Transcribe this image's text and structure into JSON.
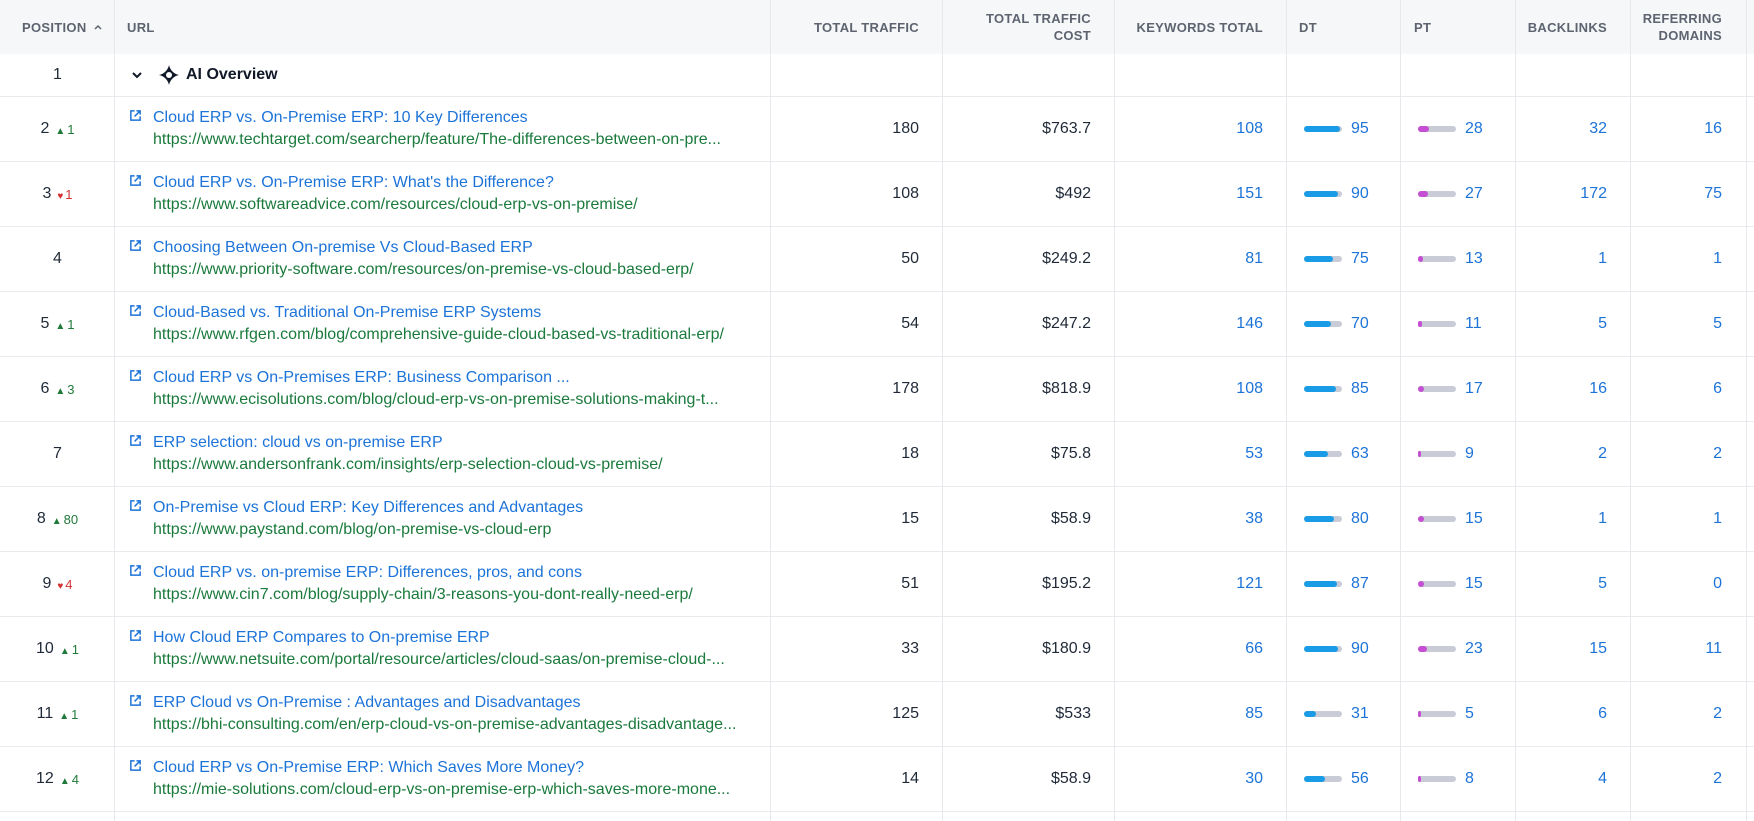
{
  "headers": {
    "position": "POSITION",
    "url": "URL",
    "traffic": "TOTAL TRAFFIC",
    "cost_line1": "TOTAL TRAFFIC",
    "cost_line2": "COST",
    "keywords": "KEYWORDS TOTAL",
    "dt": "DT",
    "pt": "PT",
    "backlinks": "BACKLINKS",
    "ref_line1": "REFERRING",
    "ref_line2": "DOMAINS"
  },
  "ai_row": {
    "position": "1",
    "label": "AI Overview"
  },
  "rows": [
    {
      "position": "2",
      "change": "1",
      "dir": "up",
      "title": "Cloud ERP vs. On-Premise ERP: 10 Key Differences",
      "url": "https://www.techtarget.com/searcherp/feature/The-differences-between-on-pre...",
      "traffic": "180",
      "cost": "$763.7",
      "keywords": "108",
      "dt": "95",
      "pt": "28",
      "backlinks": "32",
      "ref": "16"
    },
    {
      "position": "3",
      "change": "1",
      "dir": "down",
      "title": "Cloud ERP vs. On-Premise ERP: What's the Difference?",
      "url": "https://www.softwareadvice.com/resources/cloud-erp-vs-on-premise/",
      "traffic": "108",
      "cost": "$492",
      "keywords": "151",
      "dt": "90",
      "pt": "27",
      "backlinks": "172",
      "ref": "75"
    },
    {
      "position": "4",
      "change": "",
      "dir": "",
      "title": "Choosing Between On-premise Vs Cloud-Based ERP",
      "url": "https://www.priority-software.com/resources/on-premise-vs-cloud-based-erp/",
      "traffic": "50",
      "cost": "$249.2",
      "keywords": "81",
      "dt": "75",
      "pt": "13",
      "backlinks": "1",
      "ref": "1"
    },
    {
      "position": "5",
      "change": "1",
      "dir": "up",
      "title": "Cloud-Based vs. Traditional On-Premise ERP Systems",
      "url": "https://www.rfgen.com/blog/comprehensive-guide-cloud-based-vs-traditional-erp/",
      "traffic": "54",
      "cost": "$247.2",
      "keywords": "146",
      "dt": "70",
      "pt": "11",
      "backlinks": "5",
      "ref": "5"
    },
    {
      "position": "6",
      "change": "3",
      "dir": "up",
      "title": "Cloud ERP vs On-Premises ERP: Business Comparison ...",
      "url": "https://www.ecisolutions.com/blog/cloud-erp-vs-on-premise-solutions-making-t...",
      "traffic": "178",
      "cost": "$818.9",
      "keywords": "108",
      "dt": "85",
      "pt": "17",
      "backlinks": "16",
      "ref": "6"
    },
    {
      "position": "7",
      "change": "",
      "dir": "",
      "title": "ERP selection: cloud vs on-premise ERP",
      "url": "https://www.andersonfrank.com/insights/erp-selection-cloud-vs-premise/",
      "traffic": "18",
      "cost": "$75.8",
      "keywords": "53",
      "dt": "63",
      "pt": "9",
      "backlinks": "2",
      "ref": "2"
    },
    {
      "position": "8",
      "change": "80",
      "dir": "up",
      "title": "On-Premise vs Cloud ERP: Key Differences and Advantages",
      "url": "https://www.paystand.com/blog/on-premise-vs-cloud-erp",
      "traffic": "15",
      "cost": "$58.9",
      "keywords": "38",
      "dt": "80",
      "pt": "15",
      "backlinks": "1",
      "ref": "1"
    },
    {
      "position": "9",
      "change": "4",
      "dir": "down",
      "title": "Cloud ERP vs. on-premise ERP: Differences, pros, and cons",
      "url": "https://www.cin7.com/blog/supply-chain/3-reasons-you-dont-really-need-erp/",
      "traffic": "51",
      "cost": "$195.2",
      "keywords": "121",
      "dt": "87",
      "pt": "15",
      "backlinks": "5",
      "ref": "0"
    },
    {
      "position": "10",
      "change": "1",
      "dir": "up",
      "title": "How Cloud ERP Compares to On-premise ERP",
      "url": "https://www.netsuite.com/portal/resource/articles/cloud-saas/on-premise-cloud-...",
      "traffic": "33",
      "cost": "$180.9",
      "keywords": "66",
      "dt": "90",
      "pt": "23",
      "backlinks": "15",
      "ref": "11"
    },
    {
      "position": "11",
      "change": "1",
      "dir": "up",
      "title": "ERP Cloud vs On-Premise : Advantages and Disadvantages",
      "url": "https://bhi-consulting.com/en/erp-cloud-vs-on-premise-advantages-disadvantage...",
      "traffic": "125",
      "cost": "$533",
      "keywords": "85",
      "dt": "31",
      "pt": "5",
      "backlinks": "6",
      "ref": "2"
    },
    {
      "position": "12",
      "change": "4",
      "dir": "up",
      "title": "Cloud ERP vs On-Premise ERP: Which Saves More Money?",
      "url": "https://mie-solutions.com/cloud-erp-vs-on-premise-erp-which-saves-more-mone...",
      "traffic": "14",
      "cost": "$58.9",
      "keywords": "30",
      "dt": "56",
      "pt": "8",
      "backlinks": "4",
      "ref": "2"
    }
  ],
  "icons": {
    "sort": "chevron-up-icon",
    "expand": "chevron-down-icon",
    "ai": "ai-sparkle-icon",
    "external": "external-link-icon"
  },
  "colors": {
    "link": "#1c73d8",
    "url": "#1a7a3c",
    "dt_bar": "#1a9be6",
    "pt_bar": "#c54fd3",
    "up": "#1f7a3a",
    "down": "#d33131"
  }
}
